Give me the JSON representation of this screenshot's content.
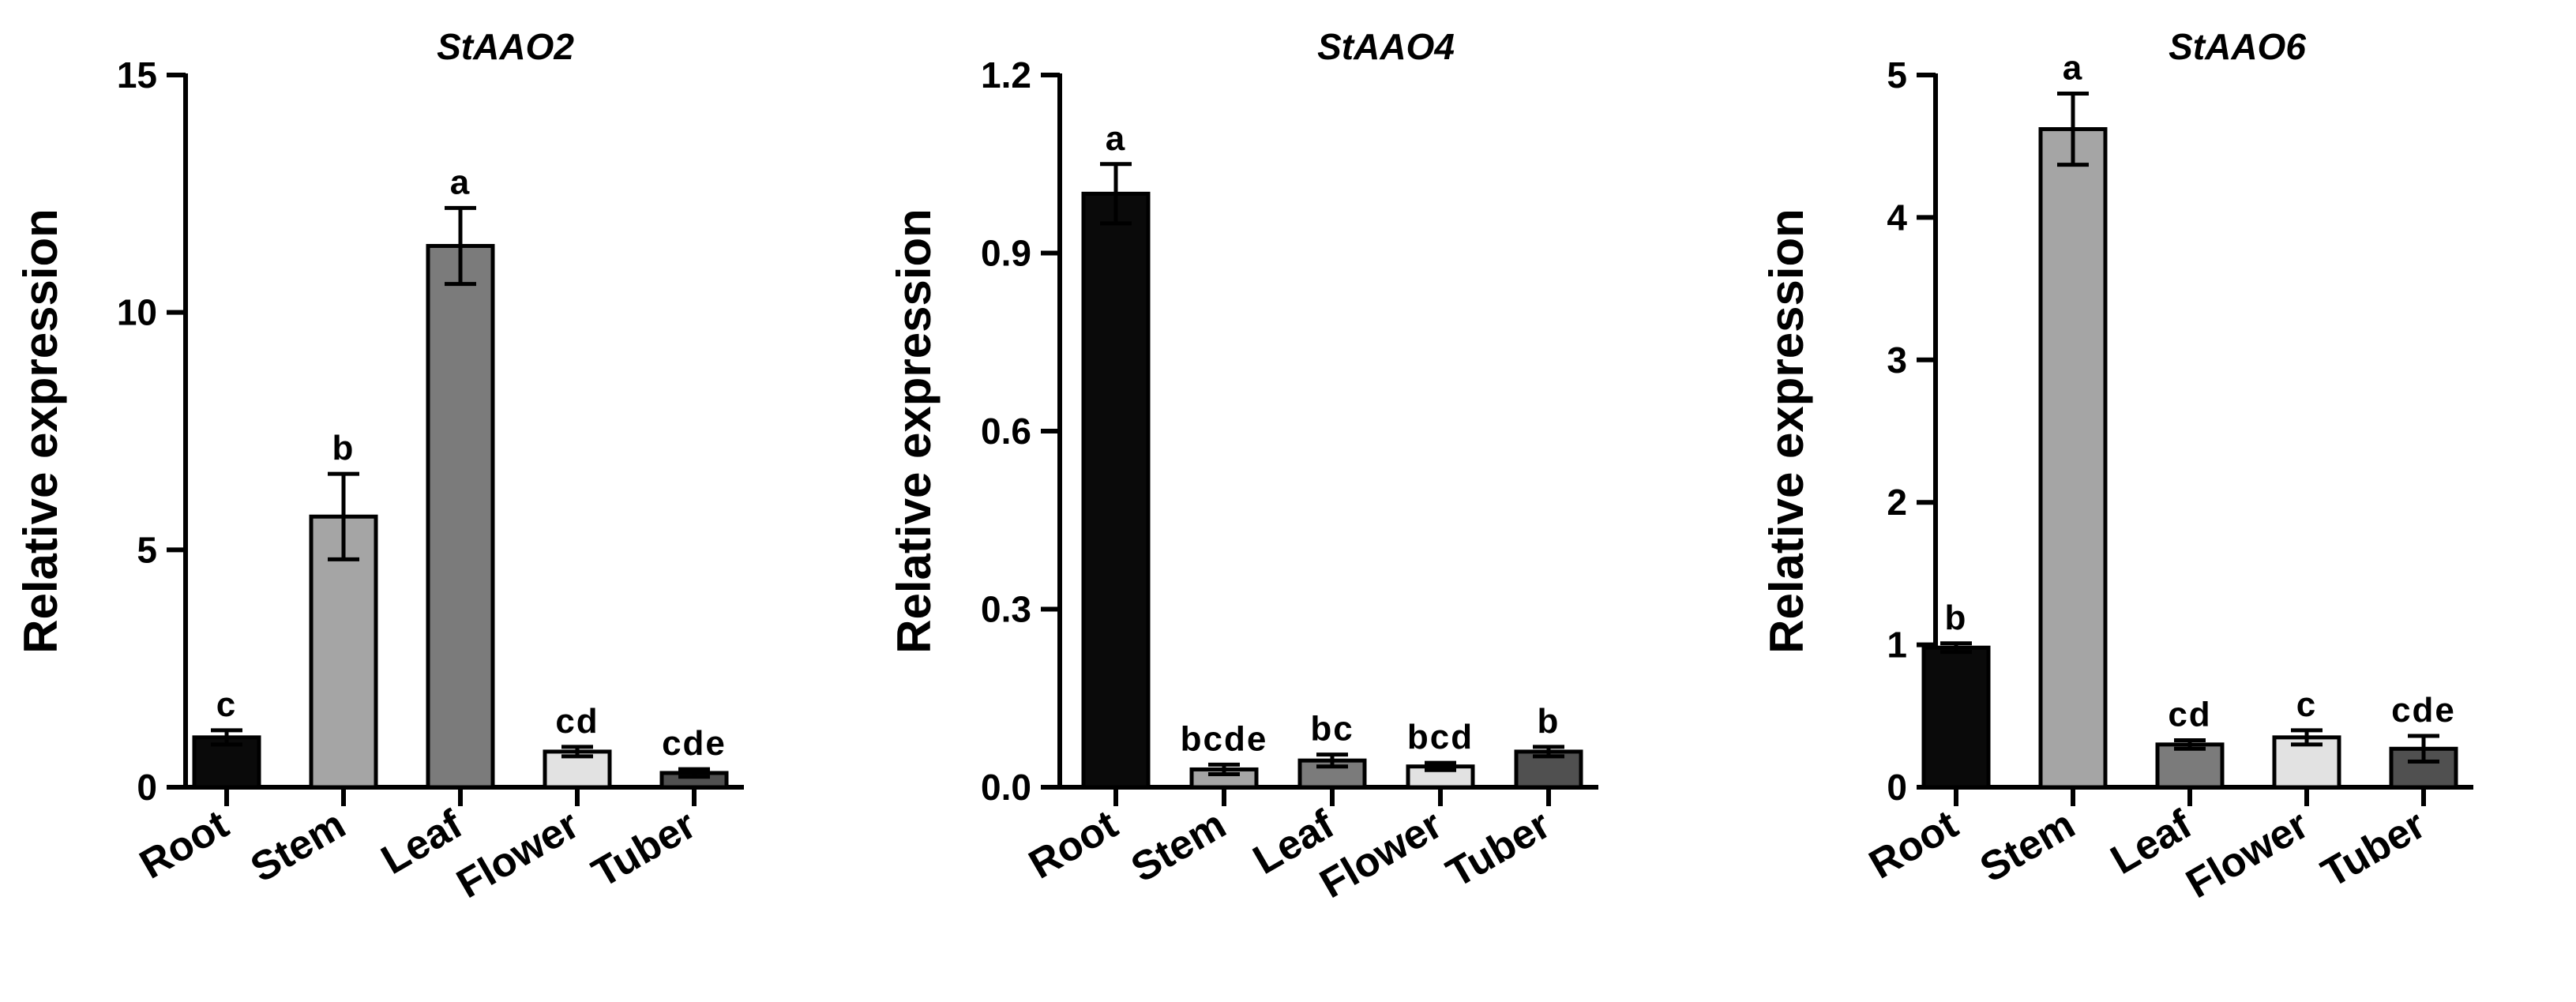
{
  "chart_data": [
    {
      "type": "bar",
      "title": "StAAO2",
      "ylabel": "Relative expression",
      "xlabel": "",
      "ylim": [
        0,
        15
      ],
      "yticks": [
        0,
        5,
        10,
        15
      ],
      "ytick_labels": [
        "0",
        "5",
        "10",
        "15"
      ],
      "categories": [
        "Root",
        "Stem",
        "Leaf",
        "Flower",
        "Tuber"
      ],
      "values": [
        1.05,
        5.7,
        11.4,
        0.75,
        0.3
      ],
      "errors": [
        0.15,
        0.9,
        0.8,
        0.1,
        0.08
      ],
      "significance": [
        "c",
        "b",
        "a",
        "cd",
        "cde"
      ],
      "colors": [
        "#0a0a0a",
        "#a5a5a5",
        "#7b7b7b",
        "#e2e2e2",
        "#505050"
      ]
    },
    {
      "type": "bar",
      "title": "StAAO4",
      "ylabel": "Relative expression",
      "xlabel": "",
      "ylim": [
        0,
        1.2
      ],
      "yticks": [
        0,
        0.3,
        0.6,
        0.9,
        1.2
      ],
      "ytick_labels": [
        "0.0",
        "0.3",
        "0.6",
        "0.9",
        "1.2"
      ],
      "categories": [
        "Root",
        "Stem",
        "Leaf",
        "Flower",
        "Tuber"
      ],
      "values": [
        1.0,
        0.03,
        0.045,
        0.035,
        0.06
      ],
      "errors": [
        0.05,
        0.008,
        0.01,
        0.006,
        0.008
      ],
      "significance": [
        "a",
        "bcde",
        "bc",
        "bcd",
        "b"
      ],
      "colors": [
        "#0a0a0a",
        "#a5a5a5",
        "#7b7b7b",
        "#e2e2e2",
        "#505050"
      ]
    },
    {
      "type": "bar",
      "title": "StAAO6",
      "ylabel": "Relative expression",
      "xlabel": "",
      "ylim": [
        0,
        5
      ],
      "yticks": [
        0,
        1,
        2,
        3,
        4,
        5
      ],
      "ytick_labels": [
        "0",
        "1",
        "2",
        "3",
        "4",
        "5"
      ],
      "categories": [
        "Root",
        "Stem",
        "Leaf",
        "Flower",
        "Tuber"
      ],
      "values": [
        0.98,
        4.62,
        0.3,
        0.35,
        0.27
      ],
      "errors": [
        0.03,
        0.25,
        0.03,
        0.05,
        0.09
      ],
      "significance": [
        "b",
        "a",
        "cd",
        "c",
        "cde"
      ],
      "colors": [
        "#0a0a0a",
        "#a5a5a5",
        "#7b7b7b",
        "#e2e2e2",
        "#505050"
      ]
    }
  ]
}
